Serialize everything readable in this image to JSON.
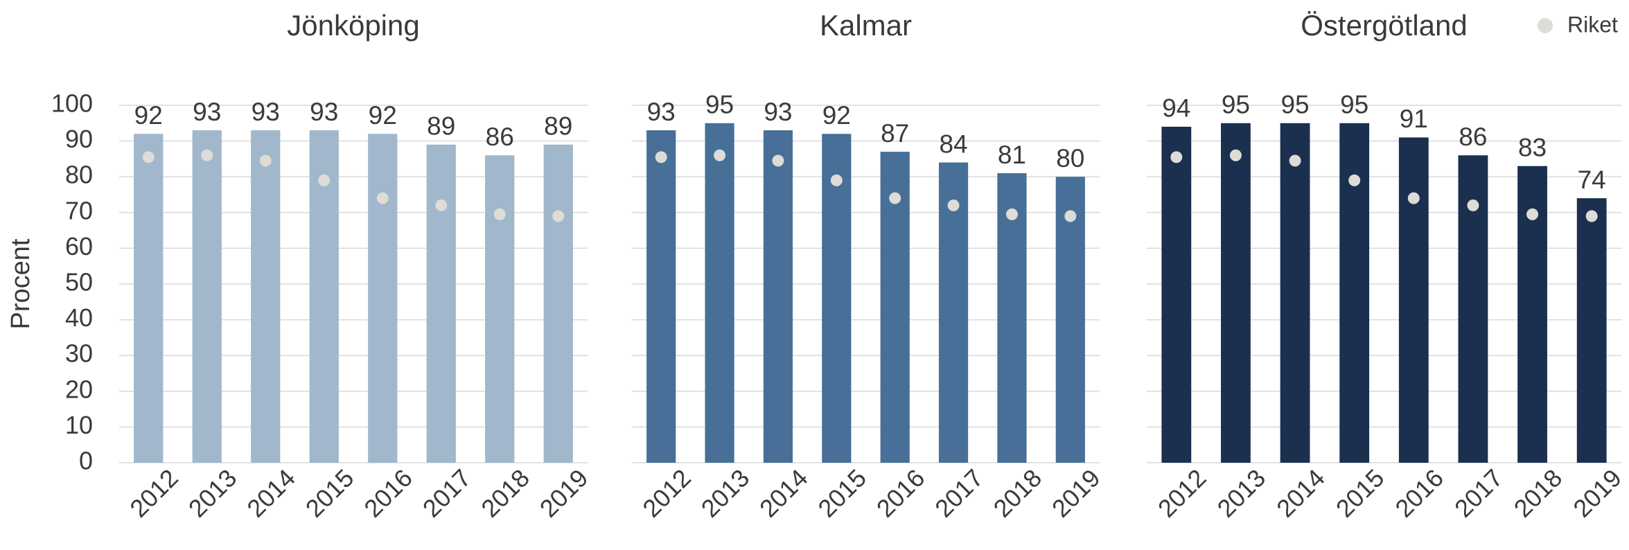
{
  "legend": {
    "name": "Riket",
    "color": "#dddcd7"
  },
  "chart_data": [
    {
      "type": "bar",
      "title": "Jönköping",
      "y_label": "Procent",
      "color": "#a1b7cb",
      "categories": [
        "2012",
        "2013",
        "2014",
        "2015",
        "2016",
        "2017",
        "2018",
        "2019"
      ],
      "values": [
        92,
        93,
        93,
        93,
        92,
        89,
        86,
        89
      ],
      "riket_values": [
        85.5,
        86,
        84.5,
        79,
        74,
        72,
        69.5,
        69
      ],
      "ylim": [
        0,
        100
      ],
      "yticks": [
        0,
        10,
        20,
        30,
        40,
        50,
        60,
        70,
        80,
        90,
        100
      ],
      "grid": true,
      "show_yticks": true
    },
    {
      "type": "bar",
      "title": "Kalmar",
      "color": "#476f97",
      "categories": [
        "2012",
        "2013",
        "2014",
        "2015",
        "2016",
        "2017",
        "2018",
        "2019"
      ],
      "values": [
        93,
        95,
        93,
        92,
        87,
        84,
        81,
        80
      ],
      "riket_values": [
        85.5,
        86,
        84.5,
        79,
        74,
        72,
        69.5,
        69
      ],
      "ylim": [
        0,
        100
      ],
      "yticks": [
        0,
        10,
        20,
        30,
        40,
        50,
        60,
        70,
        80,
        90,
        100
      ],
      "grid": true,
      "show_yticks": false
    },
    {
      "type": "bar",
      "title": "Östergötland",
      "color": "#1b2f4f",
      "categories": [
        "2012",
        "2013",
        "2014",
        "2015",
        "2016",
        "2017",
        "2018",
        "2019"
      ],
      "values": [
        94,
        95,
        95,
        95,
        91,
        86,
        83,
        74
      ],
      "riket_values": [
        85.5,
        86,
        84.5,
        79,
        74,
        72,
        69.5,
        69
      ],
      "ylim": [
        0,
        100
      ],
      "yticks": [
        0,
        10,
        20,
        30,
        40,
        50,
        60,
        70,
        80,
        90,
        100
      ],
      "grid": true,
      "show_yticks": false
    }
  ]
}
